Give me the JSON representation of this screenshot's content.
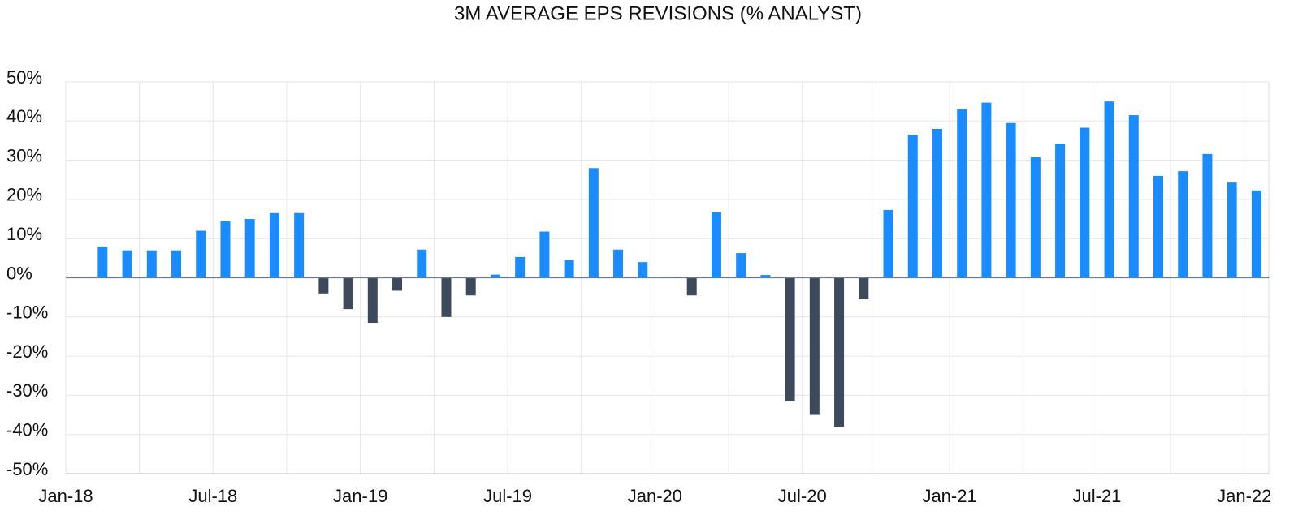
{
  "chart_data": {
    "type": "bar",
    "title": "3M AVERAGE EPS REVISIONS (% ANALYST)",
    "values": [
      8,
      7,
      7,
      7,
      12,
      14.5,
      15,
      16.5,
      16.5,
      -4,
      -8,
      -11.5,
      -3.3,
      7.2,
      -10,
      -4.5,
      0.8,
      5.3,
      11.8,
      4.5,
      28,
      7.2,
      4,
      0.2,
      -4.5,
      16.7,
      6.3,
      0.7,
      -31.5,
      -35,
      -38,
      -5.5,
      17.3,
      36.5,
      38,
      43,
      44.7,
      39.5,
      30.8,
      34.2,
      38.3,
      45,
      41.5,
      26,
      27.2,
      31.6,
      24.3,
      22.3
    ],
    "color": "#1a8cff",
    "negative_color": "#3d4a5c",
    "ylim": [
      -50,
      50
    ],
    "yticks": [
      {
        "value": -50,
        "label": "-50%"
      },
      {
        "value": -40,
        "label": "-40%"
      },
      {
        "value": -30,
        "label": "-30%"
      },
      {
        "value": -20,
        "label": "-20%"
      },
      {
        "value": -10,
        "label": "-10%"
      },
      {
        "value": 0,
        "label": "0%"
      },
      {
        "value": 10,
        "label": "10%"
      },
      {
        "value": 20,
        "label": "20%"
      },
      {
        "value": 30,
        "label": "30%"
      },
      {
        "value": 40,
        "label": "40%"
      },
      {
        "value": 50,
        "label": "50%"
      }
    ],
    "xlim": [
      0,
      49
    ],
    "xticks": [
      {
        "value": 0,
        "label": "Jan-18"
      },
      {
        "value": 6,
        "label": "Jul-18"
      },
      {
        "value": 12,
        "label": "Jan-19"
      },
      {
        "value": 18,
        "label": "Jul-19"
      },
      {
        "value": 24,
        "label": "Jan-20"
      },
      {
        "value": 30,
        "label": "Jul-20"
      },
      {
        "value": 36,
        "label": "Jan-21"
      },
      {
        "value": 42,
        "label": "Jul-21"
      },
      {
        "value": 48,
        "label": "Jan-22"
      }
    ],
    "grid": true
  }
}
